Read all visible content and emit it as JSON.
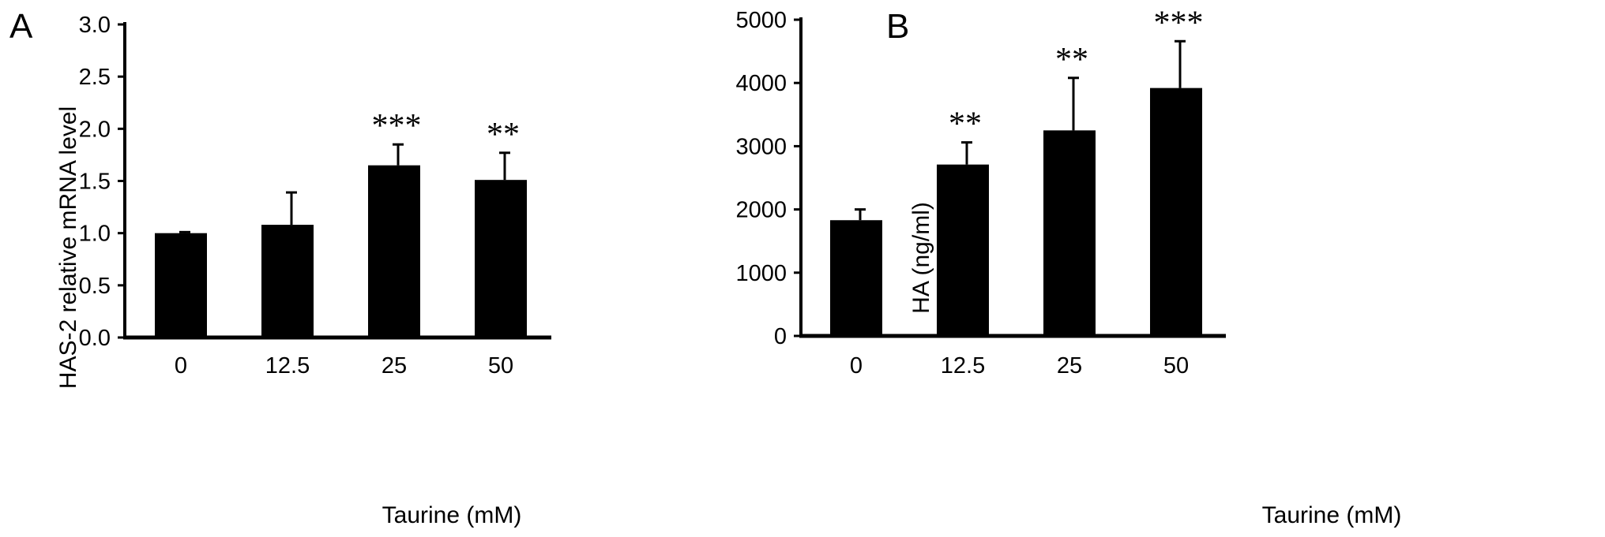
{
  "chart_data": [
    {
      "type": "bar",
      "panel_label": "A",
      "categories": [
        "0",
        "12.5",
        "25",
        "50"
      ],
      "values": [
        1.0,
        1.08,
        1.65,
        1.51
      ],
      "error": [
        0.01,
        0.31,
        0.2,
        0.26
      ],
      "significance": [
        "",
        "",
        "***",
        "**"
      ],
      "ylim": [
        0,
        3.0
      ],
      "y_ticks": [
        "0.0",
        "0.5",
        "1.0",
        "1.5",
        "2.0",
        "2.5",
        "3.0"
      ],
      "xlabel": "Taurine (mM)",
      "ylabel": "HAS-2 relative mRNA level",
      "bar_color": "#000000",
      "grid": false
    },
    {
      "type": "bar",
      "panel_label": "B",
      "categories": [
        "0",
        "12.5",
        "25",
        "50"
      ],
      "values": [
        1830,
        2710,
        3250,
        3920
      ],
      "error": [
        170,
        350,
        830,
        740
      ],
      "significance": [
        "",
        "**",
        "**",
        "***"
      ],
      "ylim": [
        0,
        5000
      ],
      "y_ticks": [
        "0",
        "1000",
        "2000",
        "3000",
        "4000",
        "5000"
      ],
      "xlabel": "Taurine (mM)",
      "ylabel": "HA (ng/ml)",
      "bar_color": "#000000",
      "grid": false
    }
  ]
}
